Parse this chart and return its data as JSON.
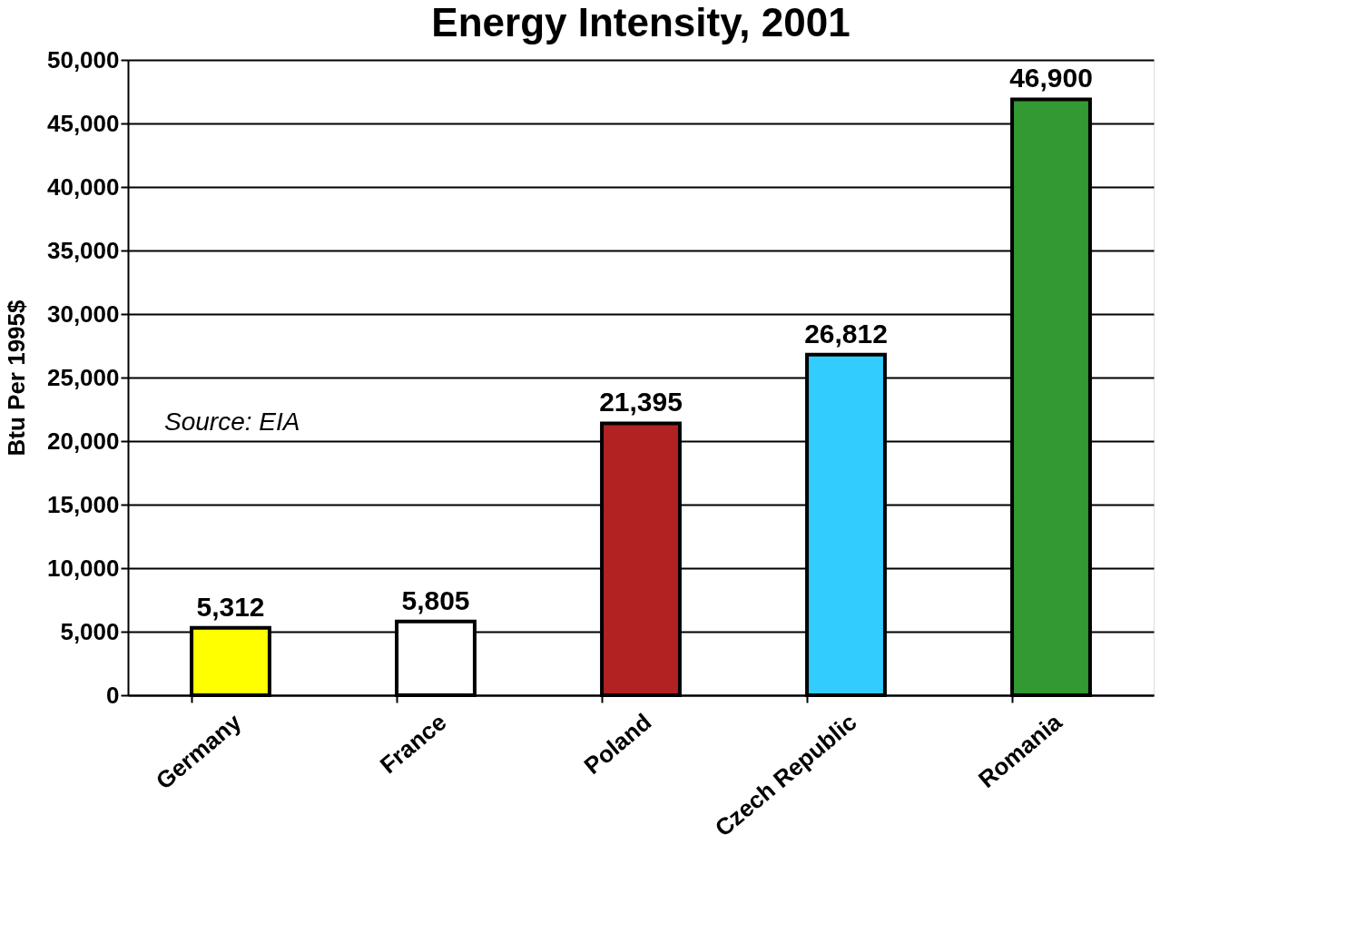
{
  "chart_data": {
    "type": "bar",
    "title": "Energy Intensity, 2001",
    "ylabel": "Btu Per 1995$",
    "categories": [
      "Germany",
      "France",
      "Poland",
      "Czech Republic",
      "Romania"
    ],
    "values": [
      5312,
      5805,
      21395,
      26812,
      46900
    ],
    "value_labels": [
      "5,312",
      "5,805",
      "21,395",
      "26,812",
      "46,900"
    ],
    "colors": [
      "#ffff00",
      "#ffffff",
      "#b22222",
      "#33ccff",
      "#339933"
    ],
    "ylim": [
      0,
      50000
    ],
    "yticks": [
      0,
      {
        "value": 5000,
        "label": "5,000"
      },
      {
        "value": 10000,
        "label": "10,000"
      },
      {
        "value": 15000,
        "label": "15,000"
      },
      {
        "value": 20000,
        "label": "20,000"
      },
      {
        "value": 25000,
        "label": "25,000"
      },
      {
        "value": 30000,
        "label": "30,000"
      },
      {
        "value": 35000,
        "label": "35,000"
      },
      {
        "value": 40000,
        "label": "40,000"
      },
      {
        "value": 45000,
        "label": "45,000"
      },
      {
        "value": 50000,
        "label": "50,000"
      }
    ],
    "grid": "y",
    "annotations": [
      "Source: EIA"
    ]
  }
}
